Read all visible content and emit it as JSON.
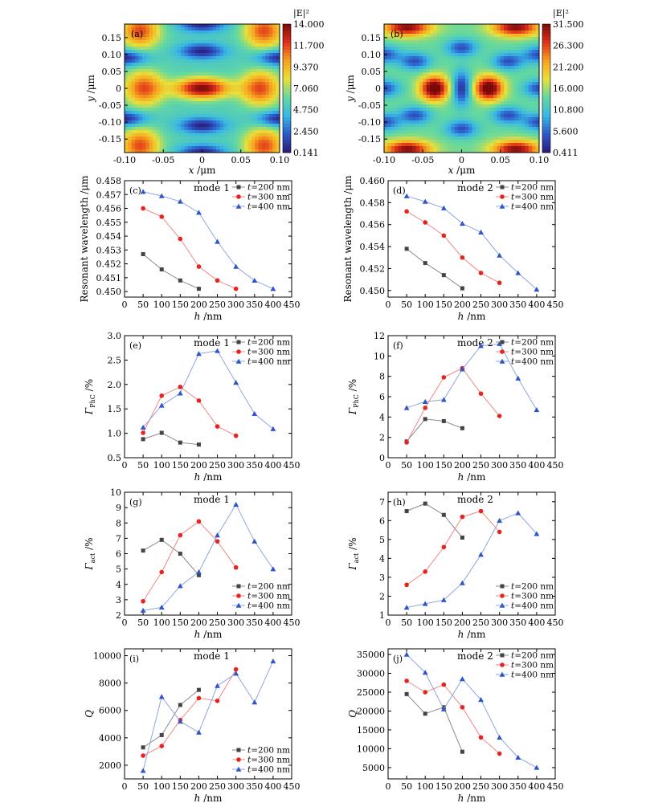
{
  "colors": {
    "t200": "#444444",
    "t300": "#e8221f",
    "t400": "#2e55c9",
    "t200_line": "#8a8a8a",
    "t300_line": "#f08a86",
    "t400_line": "#8fa6e0",
    "cmap": [
      "#2b1a78",
      "#2d59c8",
      "#38b7e6",
      "#63d8a0",
      "#e8e03a",
      "#f7a11f",
      "#e0301a",
      "#7a0a0a"
    ]
  },
  "chart_data": [
    {
      "id": "a",
      "type": "heatmap",
      "panel_label": "(a)",
      "colorbar_title": "|E|²",
      "colorbar_ticks": [
        "14.000",
        "11.700",
        "9.370",
        "7.060",
        "4.750",
        "2.450",
        "0.141"
      ],
      "range": [
        0.141,
        14.0
      ],
      "xlabel": "x /μm",
      "ylabel": "y /μm",
      "xticks": [
        "-0.10",
        "-0.05",
        "0",
        "0.05",
        "0.10"
      ],
      "yticks": [
        "0.15",
        "0.10",
        "0.05",
        "0",
        "-0.05",
        "-0.10",
        "-0.15"
      ],
      "xlim": [
        -0.1,
        0.1
      ],
      "ylim": [
        -0.19,
        0.19
      ]
    },
    {
      "id": "b",
      "type": "heatmap",
      "panel_label": "(b)",
      "colorbar_title": "|E|²",
      "colorbar_ticks": [
        "31.500",
        "26.300",
        "21.200",
        "16.000",
        "10.800",
        "5.600",
        "0.411"
      ],
      "range": [
        0.411,
        31.5
      ],
      "xlabel": "x /μm",
      "ylabel": "y /μm",
      "xticks": [
        "-0.10",
        "-0.05",
        "0",
        "0.05",
        "0.10"
      ],
      "yticks": [
        "0.15",
        "0.10",
        "0.05",
        "0",
        "-0.05",
        "-0.10",
        "-0.15"
      ],
      "xlim": [
        -0.1,
        0.1
      ],
      "ylim": [
        -0.19,
        0.19
      ]
    },
    {
      "id": "c",
      "type": "line",
      "panel_label": "(c)",
      "mode_label": "mode 1",
      "xlabel": "h /nm",
      "ylabel": "Resonant wavelength /μm",
      "xlim": [
        0,
        450
      ],
      "ylim": [
        0.4496,
        0.458
      ],
      "xticks": [
        0,
        50,
        100,
        150,
        200,
        250,
        300,
        350,
        400,
        450
      ],
      "yticks": [
        0.45,
        0.451,
        0.452,
        0.453,
        0.454,
        0.455,
        0.456,
        0.457,
        0.458
      ],
      "ytick_labels": [
        "0.450",
        "0.451",
        "0.452",
        "0.453",
        "0.454",
        "0.455",
        "0.456",
        "0.457",
        "0.458"
      ],
      "legend_pos": "top-right",
      "series": [
        {
          "name": "t=200 nm",
          "key": "t200",
          "marker": "square",
          "x": [
            50,
            100,
            150,
            200
          ],
          "y": [
            0.4527,
            0.4516,
            0.4508,
            0.4502
          ]
        },
        {
          "name": "t=300 nm",
          "key": "t300",
          "marker": "circle",
          "x": [
            50,
            100,
            150,
            200,
            250,
            300
          ],
          "y": [
            0.456,
            0.4554,
            0.4538,
            0.4518,
            0.4508,
            0.4502
          ]
        },
        {
          "name": "t=400 nm",
          "key": "t400",
          "marker": "triangle",
          "x": [
            50,
            100,
            150,
            200,
            250,
            300,
            350,
            400
          ],
          "y": [
            0.4572,
            0.4569,
            0.4565,
            0.4557,
            0.4536,
            0.4518,
            0.4508,
            0.4502
          ]
        }
      ]
    },
    {
      "id": "d",
      "type": "line",
      "panel_label": "(d)",
      "mode_label": "mode 2",
      "xlabel": "h /nm",
      "ylabel": "Resonant wavelength /μm",
      "xlim": [
        0,
        450
      ],
      "ylim": [
        0.4494,
        0.46
      ],
      "xticks": [
        0,
        50,
        100,
        150,
        200,
        250,
        300,
        350,
        400,
        450
      ],
      "yticks": [
        0.45,
        0.452,
        0.454,
        0.456,
        0.458,
        0.46
      ],
      "ytick_labels": [
        "0.450",
        "0.452",
        "0.454",
        "0.456",
        "0.458",
        "0.460"
      ],
      "legend_pos": "top-right",
      "series": [
        {
          "name": "t=200 nm",
          "key": "t200",
          "marker": "square",
          "x": [
            50,
            100,
            150,
            200
          ],
          "y": [
            0.4538,
            0.4525,
            0.4514,
            0.4502
          ]
        },
        {
          "name": "t=300 nm",
          "key": "t300",
          "marker": "circle",
          "x": [
            50,
            100,
            150,
            200,
            250,
            300
          ],
          "y": [
            0.4572,
            0.4562,
            0.455,
            0.453,
            0.4516,
            0.4507
          ]
        },
        {
          "name": "t=400 nm",
          "key": "t400",
          "marker": "triangle",
          "x": [
            50,
            100,
            150,
            200,
            250,
            300,
            350,
            400
          ],
          "y": [
            0.4586,
            0.4581,
            0.4575,
            0.4561,
            0.4553,
            0.4532,
            0.4516,
            0.4501
          ]
        }
      ]
    },
    {
      "id": "e",
      "type": "line",
      "panel_label": "(e)",
      "mode_label": "mode 1",
      "xlabel": "h /nm",
      "ylabel": "Γ_PhC /%",
      "xlim": [
        0,
        450
      ],
      "ylim": [
        0.5,
        3.0
      ],
      "xticks": [
        0,
        50,
        100,
        150,
        200,
        250,
        300,
        350,
        400,
        450
      ],
      "yticks": [
        0.5,
        1.0,
        1.5,
        2.0,
        2.5,
        3.0
      ],
      "ytick_labels": [
        "0.5",
        "1.0",
        "1.5",
        "2.0",
        "2.5",
        "3.0"
      ],
      "legend_pos": "top-right",
      "series": [
        {
          "name": "t=200 nm",
          "key": "t200",
          "marker": "square",
          "x": [
            50,
            100,
            150,
            200
          ],
          "y": [
            0.88,
            1.01,
            0.81,
            0.77
          ]
        },
        {
          "name": "t=300 nm",
          "key": "t300",
          "marker": "circle",
          "x": [
            50,
            100,
            150,
            200,
            250,
            300
          ],
          "y": [
            1.01,
            1.77,
            1.95,
            1.67,
            1.14,
            0.95
          ]
        },
        {
          "name": "t=400 nm",
          "key": "t400",
          "marker": "triangle",
          "x": [
            50,
            100,
            150,
            200,
            250,
            300,
            350,
            400
          ],
          "y": [
            1.12,
            1.57,
            1.82,
            2.63,
            2.69,
            2.04,
            1.4,
            1.09
          ]
        }
      ]
    },
    {
      "id": "f",
      "type": "line",
      "panel_label": "(f)",
      "mode_label": "mode 2",
      "xlabel": "h /nm",
      "ylabel": "Γ_PhC /%",
      "xlim": [
        0,
        450
      ],
      "ylim": [
        0,
        12
      ],
      "xticks": [
        0,
        50,
        100,
        150,
        200,
        250,
        300,
        350,
        400,
        450
      ],
      "yticks": [
        0,
        2,
        4,
        6,
        8,
        10,
        12
      ],
      "ytick_labels": [
        "0",
        "2",
        "4",
        "6",
        "8",
        "10",
        "12"
      ],
      "legend_pos": "top-right",
      "series": [
        {
          "name": "t=200 nm",
          "key": "t200",
          "marker": "square",
          "x": [
            50,
            100,
            150,
            200
          ],
          "y": [
            1.6,
            3.8,
            3.6,
            2.9
          ]
        },
        {
          "name": "t=300 nm",
          "key": "t300",
          "marker": "circle",
          "x": [
            50,
            100,
            150,
            200,
            250,
            300
          ],
          "y": [
            1.5,
            4.9,
            7.9,
            8.8,
            6.3,
            4.1
          ]
        },
        {
          "name": "t=400 nm",
          "key": "t400",
          "marker": "triangle",
          "x": [
            50,
            100,
            150,
            200,
            250,
            300,
            350,
            400
          ],
          "y": [
            4.9,
            5.5,
            5.7,
            8.7,
            11.0,
            11.2,
            7.8,
            4.7
          ]
        }
      ]
    },
    {
      "id": "g",
      "type": "line",
      "panel_label": "(g)",
      "mode_label": "mode 1",
      "xlabel": "h /nm",
      "ylabel": "Γ_act /%",
      "xlim": [
        0,
        450
      ],
      "ylim": [
        2,
        10
      ],
      "xticks": [
        0,
        50,
        100,
        150,
        200,
        250,
        300,
        350,
        400,
        450
      ],
      "yticks": [
        2,
        3,
        4,
        5,
        6,
        7,
        8,
        9,
        10
      ],
      "ytick_labels": [
        "2",
        "3",
        "4",
        "5",
        "6",
        "7",
        "8",
        "9",
        "10"
      ],
      "legend_pos": "bottom-right",
      "series": [
        {
          "name": "t=200 nm",
          "key": "t200",
          "marker": "square",
          "x": [
            50,
            100,
            150,
            200
          ],
          "y": [
            6.2,
            6.9,
            6.0,
            4.6
          ]
        },
        {
          "name": "t=300 nm",
          "key": "t300",
          "marker": "circle",
          "x": [
            50,
            100,
            150,
            200,
            250,
            300
          ],
          "y": [
            2.9,
            4.8,
            7.2,
            8.1,
            6.8,
            5.1
          ]
        },
        {
          "name": "t=400 nm",
          "key": "t400",
          "marker": "triangle",
          "x": [
            50,
            100,
            150,
            200,
            250,
            300,
            350,
            400
          ],
          "y": [
            2.3,
            2.5,
            3.9,
            4.8,
            7.2,
            9.2,
            6.8,
            5.0
          ]
        }
      ]
    },
    {
      "id": "h",
      "type": "line",
      "panel_label": "(h)",
      "mode_label": "mode 2",
      "xlabel": "h /nm",
      "ylabel": "Γ_act /%",
      "xlim": [
        0,
        450
      ],
      "ylim": [
        1,
        7.5
      ],
      "xticks": [
        0,
        50,
        100,
        150,
        200,
        250,
        300,
        350,
        400,
        450
      ],
      "yticks": [
        1,
        2,
        3,
        4,
        5,
        6,
        7
      ],
      "ytick_labels": [
        "1",
        "2",
        "3",
        "4",
        "5",
        "6",
        "7"
      ],
      "legend_pos": "bottom-right",
      "series": [
        {
          "name": "t=200 nm",
          "key": "t200",
          "marker": "square",
          "x": [
            50,
            100,
            150,
            200
          ],
          "y": [
            6.5,
            6.9,
            6.3,
            5.1
          ]
        },
        {
          "name": "t=300 nm",
          "key": "t300",
          "marker": "circle",
          "x": [
            50,
            100,
            150,
            200,
            250,
            300
          ],
          "y": [
            2.6,
            3.3,
            4.6,
            6.2,
            6.5,
            5.4
          ]
        },
        {
          "name": "t=400 nm",
          "key": "t400",
          "marker": "triangle",
          "x": [
            50,
            100,
            150,
            200,
            250,
            300,
            350,
            400
          ],
          "y": [
            1.4,
            1.6,
            1.8,
            2.7,
            4.2,
            6.0,
            6.4,
            5.3
          ]
        }
      ]
    },
    {
      "id": "i",
      "type": "line",
      "panel_label": "(i)",
      "mode_label": "mode 1",
      "xlabel": "h /nm",
      "ylabel": "Q",
      "xlim": [
        0,
        450
      ],
      "ylim": [
        1000,
        10500
      ],
      "xticks": [
        0,
        50,
        100,
        150,
        200,
        250,
        300,
        350,
        400,
        450
      ],
      "yticks": [
        2000,
        4000,
        6000,
        8000,
        10000
      ],
      "ytick_labels": [
        "2000",
        "4000",
        "6000",
        "8000",
        "10000"
      ],
      "legend_pos": "bottom-right",
      "series": [
        {
          "name": "t=200 nm",
          "key": "t200",
          "marker": "square",
          "x": [
            50,
            100,
            150,
            200
          ],
          "y": [
            3300,
            4200,
            6400,
            7500
          ]
        },
        {
          "name": "t=300 nm",
          "key": "t300",
          "marker": "circle",
          "x": [
            50,
            100,
            150,
            200,
            250,
            300
          ],
          "y": [
            2700,
            3400,
            5300,
            6900,
            6700,
            9000
          ]
        },
        {
          "name": "t=400 nm",
          "key": "t400",
          "marker": "triangle",
          "x": [
            50,
            100,
            150,
            200,
            250,
            300,
            350,
            400
          ],
          "y": [
            1600,
            7000,
            5200,
            4400,
            7800,
            8700,
            6600,
            9600
          ]
        }
      ]
    },
    {
      "id": "j",
      "type": "line",
      "panel_label": "(j)",
      "mode_label": "mode 2",
      "xlabel": "h /nm",
      "ylabel": "Q",
      "xlim": [
        0,
        450
      ],
      "ylim": [
        2000,
        36500
      ],
      "xticks": [
        0,
        50,
        100,
        150,
        200,
        250,
        300,
        350,
        400,
        450
      ],
      "yticks": [
        5000,
        10000,
        15000,
        20000,
        25000,
        30000,
        35000
      ],
      "ytick_labels": [
        "5000",
        "10000",
        "15000",
        "20000",
        "25000",
        "30000",
        "35000"
      ],
      "legend_pos": "top-right",
      "series": [
        {
          "name": "t=200 nm",
          "key": "t200",
          "marker": "square",
          "x": [
            50,
            100,
            150,
            200
          ],
          "y": [
            24500,
            19300,
            21000,
            9200
          ]
        },
        {
          "name": "t=300 nm",
          "key": "t300",
          "marker": "circle",
          "x": [
            50,
            100,
            150,
            200,
            250,
            300
          ],
          "y": [
            28000,
            25000,
            27000,
            21000,
            13000,
            8700
          ]
        },
        {
          "name": "t=400 nm",
          "key": "t400",
          "marker": "triangle",
          "x": [
            50,
            100,
            150,
            200,
            250,
            300,
            350,
            400
          ],
          "y": [
            35000,
            30200,
            20500,
            28500,
            23000,
            13000,
            7700,
            5000
          ]
        }
      ]
    }
  ]
}
